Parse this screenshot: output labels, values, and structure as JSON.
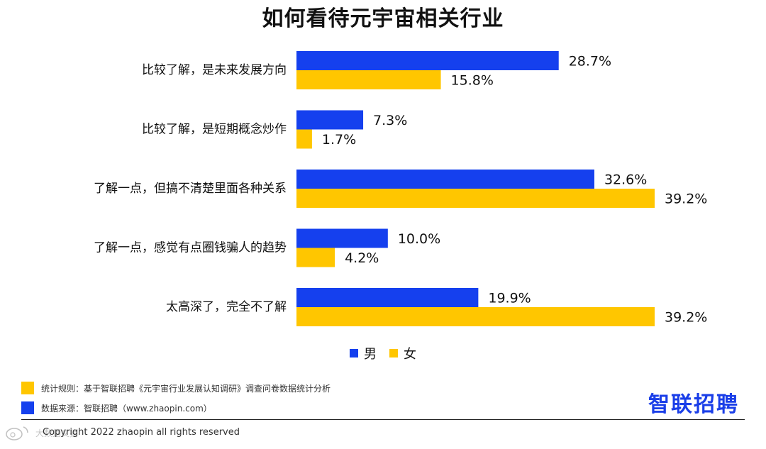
{
  "colors": {
    "male": "#1540ee",
    "female": "#ffc600",
    "brand": "#1a3ee8"
  },
  "chart_data": {
    "type": "bar",
    "orientation": "horizontal",
    "title": "如何看待元宇宙相关行业",
    "categories": [
      "比较了解，是未来发展方向",
      "比较了解，是短期概念炒作",
      "了解一点，但搞不清楚里面各种关系",
      "了解一点，感觉有点圈钱骗人的趋势",
      "太高深了，完全不了解"
    ],
    "series": [
      {
        "name": "男",
        "values": [
          28.7,
          7.3,
          32.6,
          10.0,
          19.9
        ],
        "labels": [
          "28.7%",
          "7.3%",
          "32.6%",
          "10.0%",
          "19.9%"
        ]
      },
      {
        "name": "女",
        "values": [
          15.8,
          1.7,
          39.2,
          4.2,
          39.2
        ],
        "labels": [
          "15.8%",
          "1.7%",
          "39.2%",
          "4.2%",
          "39.2%"
        ]
      }
    ],
    "xlim": [
      0,
      39.2
    ],
    "grid": false,
    "legend": "bottom-center"
  },
  "legend": {
    "male": "男",
    "female": "女"
  },
  "footnotes": {
    "rule": "统计规则：基于智联招聘《元宇宙行业发展认知调研》调查问卷数据统计分析",
    "source": "数据来源：智联招聘（www.zhaopin.com）"
  },
  "brand": "智联招聘",
  "copyright": "Copyright 2022 zhaopin all rights reserved",
  "watermark": "大数据文摘"
}
